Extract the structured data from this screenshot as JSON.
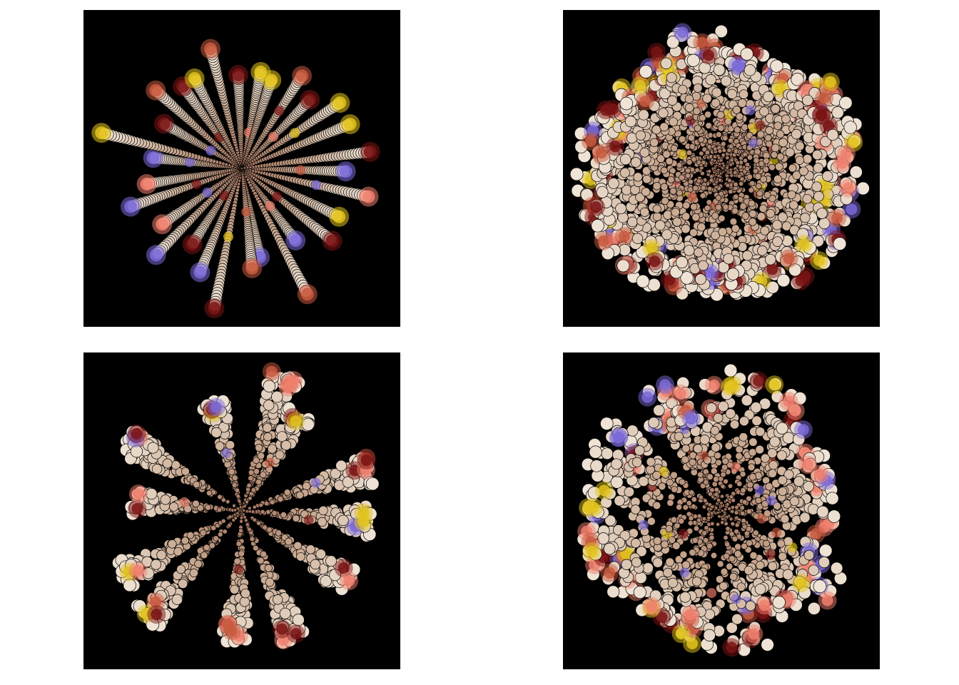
{
  "figure": {
    "background": "#ffffff",
    "panel_background": "#000000",
    "panels": [
      {
        "id": "top-left",
        "pattern": "radial-rays",
        "rays": 30,
        "seed": 11
      },
      {
        "id": "top-right",
        "pattern": "scattered-burst",
        "rays": 40,
        "seed": 23
      },
      {
        "id": "bottom-left",
        "pattern": "spiky-burst",
        "rays": 12,
        "seed": 37
      },
      {
        "id": "bottom-right",
        "pattern": "dense-burst",
        "rays": 24,
        "seed": 53
      }
    ],
    "palette": {
      "inner": "#a0705a",
      "mid": "#c8a890",
      "outer": "#efe4d6",
      "accents": [
        "#f0806e",
        "#7b6ad8",
        "#e2c31c",
        "#7a1414",
        "#c85a40"
      ]
    }
  }
}
